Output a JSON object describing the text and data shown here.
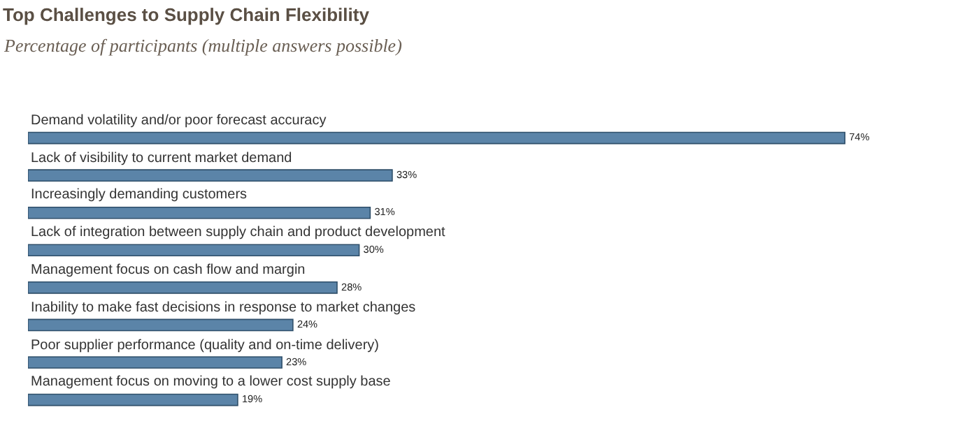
{
  "chart_data": {
    "type": "bar",
    "orientation": "horizontal",
    "title": "Top Challenges to Supply Chain Flexibility",
    "subtitle": "Percentage of participants (multiple answers possible)",
    "categories": [
      "Demand volatility and/or poor forecast accuracy",
      "Lack of visibility to current market demand",
      "Increasingly demanding customers",
      "Lack of integration between supply chain and product development",
      "Management focus on cash flow and margin",
      "Inability to make fast decisions in response to market changes",
      "Poor supplier performance (quality and on-time delivery)",
      "Management focus on moving to a lower cost supply base"
    ],
    "values": [
      74,
      33,
      31,
      30,
      28,
      24,
      23,
      19
    ],
    "value_labels": [
      "74%",
      "33%",
      "31%",
      "30%",
      "28%",
      "24%",
      "23%",
      "19%"
    ],
    "color": "#5b84a8"
  }
}
